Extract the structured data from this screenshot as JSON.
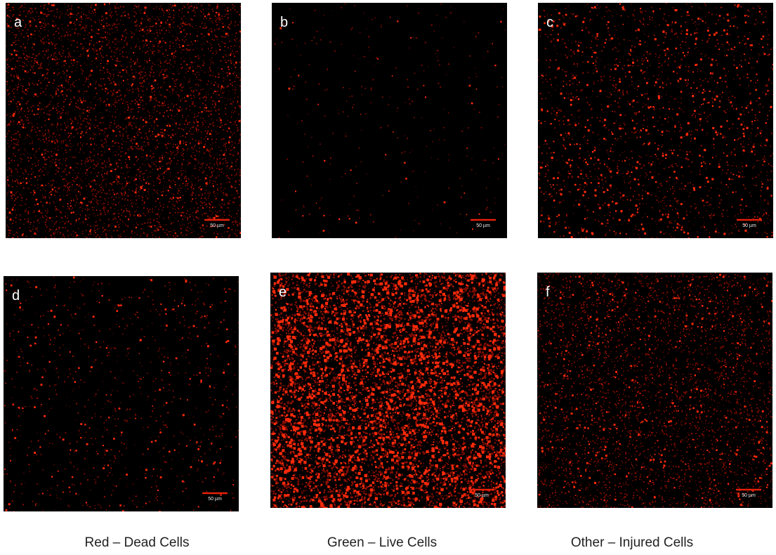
{
  "panels": [
    {
      "label": "a",
      "scale_bar": "50 µm"
    },
    {
      "label": "b",
      "scale_bar": "50 µm"
    },
    {
      "label": "c",
      "scale_bar": "50 µm"
    },
    {
      "label": "d",
      "scale_bar": "50 µm"
    },
    {
      "label": "e",
      "scale_bar": "50 µm"
    },
    {
      "label": "f",
      "scale_bar": "50 µm"
    }
  ],
  "captions": [
    "Red – Dead Cells",
    "Green – Live Cells",
    "Other – Injured Cells"
  ]
}
